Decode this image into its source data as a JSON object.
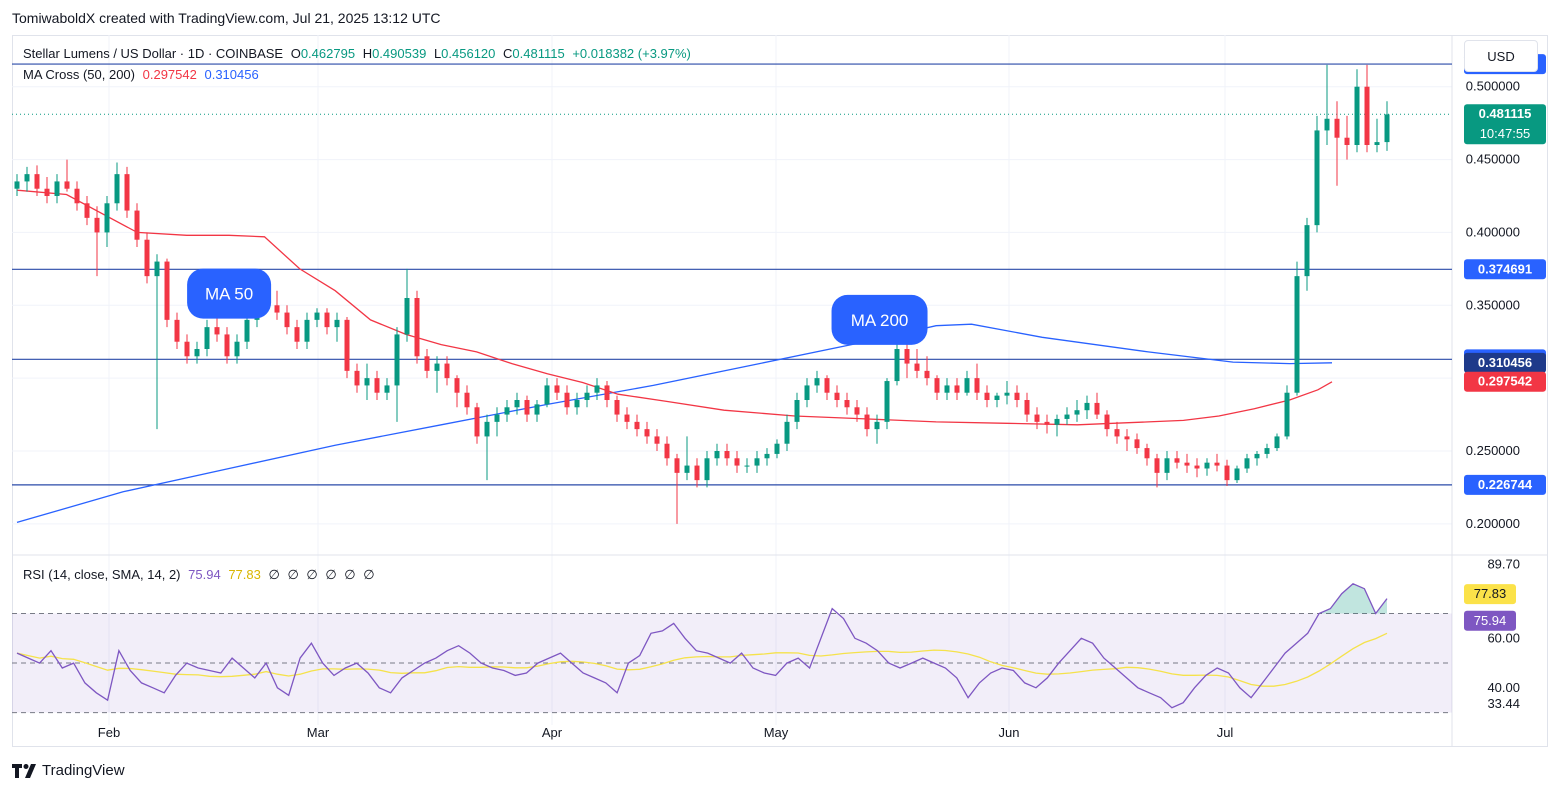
{
  "header": {
    "credit": "TomiwaboldX created with TradingView.com, Jul 21, 2025 13:12 UTC"
  },
  "legend": {
    "symbol": "Stellar Lumens / US Dollar · 1D · COINBASE",
    "o_label": "O",
    "o": "0.462795",
    "h_label": "H",
    "h": "0.490539",
    "l_label": "L",
    "l": "0.456120",
    "c_label": "C",
    "c": "0.481115",
    "change": "+0.018382 (+3.97%)",
    "ma_label": "MA Cross (50, 200)",
    "ma50_value": "0.297542",
    "ma200_value": "0.310456",
    "rsi_label": "RSI (14, close, SMA, 14, 2)",
    "rsi_value": "75.94",
    "rsi_sma_value": "77.83",
    "empty_values": [
      "∅",
      "∅",
      "∅",
      "∅",
      "∅",
      "∅"
    ]
  },
  "toolbar": {
    "currency": "USD"
  },
  "footer": {
    "brand": "TradingView"
  },
  "colors": {
    "up": "#089981",
    "down": "#f23645",
    "ma50": "#f23645",
    "ma200": "#2962ff",
    "rsi": "#7e57c2",
    "rsi_sma": "#f5e24b",
    "level": "#2a4aa8",
    "callout": "#2962ff"
  },
  "chart_data": {
    "type": "candlestick",
    "title": "Stellar Lumens / US Dollar · 1D · COINBASE",
    "x_axis": {
      "ticks": [
        "Feb",
        "Mar",
        "Apr",
        "May",
        "Jun",
        "Jul"
      ]
    },
    "y_axis": {
      "ticks": [
        "0.500000",
        "0.450000",
        "0.400000",
        "0.350000",
        "0.300000",
        "0.250000",
        "0.200000"
      ],
      "ylim": [
        0.18,
        0.53
      ]
    },
    "horizontal_levels": [
      "0.515532",
      "0.374691",
      "0.312911",
      "0.226744"
    ],
    "price_labels": [
      {
        "text": "0.515532",
        "value": 0.515532,
        "color": "#2962ff"
      },
      {
        "text": "0.481115",
        "value": 0.481115,
        "color": "#089981",
        "countdown": "10:47:55"
      },
      {
        "text": "0.374691",
        "value": 0.374691,
        "color": "#2962ff"
      },
      {
        "text": "0.312911",
        "value": 0.312911,
        "color": "#2962ff"
      },
      {
        "text": "0.310456",
        "value": 0.310456,
        "color": "#1e3a8a"
      },
      {
        "text": "0.297542",
        "value": 0.297542,
        "color": "#f23645"
      },
      {
        "text": "0.226744",
        "value": 0.226744,
        "color": "#2962ff"
      }
    ],
    "callouts": [
      {
        "text": "MA 50",
        "date_index": 30,
        "value": 0.358
      },
      {
        "text": "MA 200",
        "date_index": 122,
        "value": 0.34
      }
    ],
    "ma50": [
      0.429,
      0.426,
      0.4,
      0.398,
      0.398,
      0.397,
      0.375,
      0.36,
      0.34,
      0.33,
      0.323,
      0.318,
      0.31,
      0.303,
      0.297,
      0.289,
      0.284,
      0.278,
      0.274,
      0.272,
      0.27,
      0.269,
      0.268,
      0.269,
      0.27,
      0.271,
      0.274,
      0.279,
      0.285,
      0.292,
      0.2975
    ],
    "ma50_x": [
      0,
      7,
      17,
      24,
      30,
      35,
      40,
      45,
      50,
      55,
      60,
      65,
      70,
      75,
      80,
      85,
      92,
      100,
      110,
      120,
      130,
      140,
      150,
      155,
      160,
      165,
      170,
      175,
      180,
      184,
      186
    ],
    "ma200": [
      0.201,
      0.222,
      0.238,
      0.254,
      0.268,
      0.282,
      0.295,
      0.31,
      0.325,
      0.336,
      0.337,
      0.328,
      0.318,
      0.311,
      0.31,
      0.3105
    ],
    "ma200_x": [
      0,
      15,
      30,
      45,
      60,
      75,
      90,
      105,
      120,
      130,
      135,
      145,
      160,
      172,
      180,
      186
    ],
    "candles_y_range": [
      0.195,
      0.518
    ],
    "candles": [
      [
        0.43,
        0.44,
        0.425,
        0.435
      ],
      [
        0.435,
        0.445,
        0.428,
        0.44
      ],
      [
        0.44,
        0.446,
        0.425,
        0.43
      ],
      [
        0.43,
        0.438,
        0.42,
        0.425
      ],
      [
        0.425,
        0.44,
        0.42,
        0.435
      ],
      [
        0.435,
        0.45,
        0.428,
        0.43
      ],
      [
        0.43,
        0.435,
        0.415,
        0.42
      ],
      [
        0.42,
        0.425,
        0.405,
        0.41
      ],
      [
        0.41,
        0.418,
        0.37,
        0.4
      ],
      [
        0.4,
        0.425,
        0.39,
        0.42
      ],
      [
        0.42,
        0.448,
        0.415,
        0.44
      ],
      [
        0.44,
        0.445,
        0.41,
        0.415
      ],
      [
        0.415,
        0.42,
        0.39,
        0.395
      ],
      [
        0.395,
        0.4,
        0.365,
        0.37
      ],
      [
        0.37,
        0.385,
        0.265,
        0.38
      ],
      [
        0.38,
        0.382,
        0.335,
        0.34
      ],
      [
        0.34,
        0.345,
        0.32,
        0.325
      ],
      [
        0.325,
        0.33,
        0.31,
        0.315
      ],
      [
        0.315,
        0.325,
        0.31,
        0.32
      ],
      [
        0.32,
        0.34,
        0.315,
        0.335
      ],
      [
        0.335,
        0.345,
        0.325,
        0.33
      ],
      [
        0.33,
        0.335,
        0.31,
        0.315
      ],
      [
        0.315,
        0.33,
        0.31,
        0.325
      ],
      [
        0.325,
        0.345,
        0.32,
        0.34
      ],
      [
        0.34,
        0.36,
        0.335,
        0.355
      ],
      [
        0.355,
        0.365,
        0.345,
        0.35
      ],
      [
        0.35,
        0.36,
        0.34,
        0.345
      ],
      [
        0.345,
        0.35,
        0.33,
        0.335
      ],
      [
        0.335,
        0.34,
        0.32,
        0.325
      ],
      [
        0.325,
        0.345,
        0.32,
        0.34
      ],
      [
        0.34,
        0.348,
        0.335,
        0.345
      ],
      [
        0.345,
        0.348,
        0.33,
        0.335
      ],
      [
        0.335,
        0.345,
        0.325,
        0.34
      ],
      [
        0.34,
        0.342,
        0.3,
        0.305
      ],
      [
        0.305,
        0.31,
        0.29,
        0.295
      ],
      [
        0.295,
        0.31,
        0.285,
        0.3
      ],
      [
        0.3,
        0.305,
        0.285,
        0.29
      ],
      [
        0.29,
        0.3,
        0.285,
        0.295
      ],
      [
        0.295,
        0.335,
        0.27,
        0.33
      ],
      [
        0.33,
        0.375,
        0.325,
        0.355
      ],
      [
        0.355,
        0.36,
        0.31,
        0.315
      ],
      [
        0.315,
        0.32,
        0.3,
        0.305
      ],
      [
        0.305,
        0.315,
        0.29,
        0.31
      ],
      [
        0.31,
        0.315,
        0.295,
        0.3
      ],
      [
        0.3,
        0.302,
        0.28,
        0.29
      ],
      [
        0.29,
        0.295,
        0.275,
        0.28
      ],
      [
        0.28,
        0.283,
        0.255,
        0.26
      ],
      [
        0.26,
        0.275,
        0.23,
        0.27
      ],
      [
        0.27,
        0.28,
        0.26,
        0.275
      ],
      [
        0.275,
        0.285,
        0.27,
        0.28
      ],
      [
        0.28,
        0.29,
        0.275,
        0.285
      ],
      [
        0.285,
        0.288,
        0.27,
        0.275
      ],
      [
        0.275,
        0.285,
        0.27,
        0.282
      ],
      [
        0.282,
        0.3,
        0.28,
        0.295
      ],
      [
        0.295,
        0.3,
        0.285,
        0.29
      ],
      [
        0.29,
        0.295,
        0.275,
        0.28
      ],
      [
        0.28,
        0.29,
        0.275,
        0.285
      ],
      [
        0.285,
        0.295,
        0.28,
        0.29
      ],
      [
        0.29,
        0.3,
        0.285,
        0.295
      ],
      [
        0.295,
        0.298,
        0.28,
        0.285
      ],
      [
        0.285,
        0.288,
        0.27,
        0.275
      ],
      [
        0.275,
        0.28,
        0.265,
        0.27
      ],
      [
        0.27,
        0.275,
        0.26,
        0.265
      ],
      [
        0.265,
        0.27,
        0.255,
        0.26
      ],
      [
        0.26,
        0.265,
        0.25,
        0.255
      ],
      [
        0.255,
        0.26,
        0.24,
        0.245
      ],
      [
        0.245,
        0.248,
        0.2,
        0.235
      ],
      [
        0.235,
        0.26,
        0.23,
        0.24
      ],
      [
        0.24,
        0.245,
        0.225,
        0.23
      ],
      [
        0.23,
        0.25,
        0.225,
        0.245
      ],
      [
        0.245,
        0.255,
        0.24,
        0.25
      ],
      [
        0.25,
        0.255,
        0.24,
        0.245
      ],
      [
        0.245,
        0.25,
        0.235,
        0.24
      ],
      [
        0.24,
        0.245,
        0.235,
        0.24
      ],
      [
        0.24,
        0.25,
        0.235,
        0.245
      ],
      [
        0.245,
        0.252,
        0.24,
        0.248
      ],
      [
        0.248,
        0.258,
        0.245,
        0.255
      ],
      [
        0.255,
        0.275,
        0.25,
        0.27
      ],
      [
        0.27,
        0.29,
        0.265,
        0.285
      ],
      [
        0.285,
        0.3,
        0.28,
        0.295
      ],
      [
        0.295,
        0.305,
        0.29,
        0.3
      ],
      [
        0.3,
        0.302,
        0.285,
        0.29
      ],
      [
        0.29,
        0.295,
        0.28,
        0.285
      ],
      [
        0.285,
        0.29,
        0.275,
        0.28
      ],
      [
        0.28,
        0.285,
        0.27,
        0.275
      ],
      [
        0.275,
        0.28,
        0.26,
        0.265
      ],
      [
        0.265,
        0.275,
        0.255,
        0.27
      ],
      [
        0.27,
        0.3,
        0.265,
        0.298
      ],
      [
        0.298,
        0.325,
        0.295,
        0.32
      ],
      [
        0.32,
        0.335,
        0.3,
        0.31
      ],
      [
        0.31,
        0.32,
        0.3,
        0.305
      ],
      [
        0.305,
        0.315,
        0.295,
        0.3
      ],
      [
        0.3,
        0.302,
        0.285,
        0.29
      ],
      [
        0.29,
        0.3,
        0.285,
        0.295
      ],
      [
        0.295,
        0.3,
        0.285,
        0.29
      ],
      [
        0.29,
        0.305,
        0.288,
        0.3
      ],
      [
        0.3,
        0.31,
        0.285,
        0.29
      ],
      [
        0.29,
        0.295,
        0.28,
        0.285
      ],
      [
        0.285,
        0.29,
        0.28,
        0.288
      ],
      [
        0.288,
        0.298,
        0.282,
        0.29
      ],
      [
        0.29,
        0.295,
        0.28,
        0.285
      ],
      [
        0.285,
        0.29,
        0.27,
        0.275
      ],
      [
        0.275,
        0.28,
        0.265,
        0.27
      ],
      [
        0.27,
        0.275,
        0.262,
        0.268
      ],
      [
        0.268,
        0.275,
        0.26,
        0.272
      ],
      [
        0.272,
        0.28,
        0.268,
        0.275
      ],
      [
        0.275,
        0.285,
        0.27,
        0.278
      ],
      [
        0.278,
        0.288,
        0.272,
        0.283
      ],
      [
        0.283,
        0.29,
        0.272,
        0.275
      ],
      [
        0.275,
        0.278,
        0.26,
        0.265
      ],
      [
        0.265,
        0.27,
        0.255,
        0.26
      ],
      [
        0.26,
        0.265,
        0.25,
        0.258
      ],
      [
        0.258,
        0.262,
        0.248,
        0.252
      ],
      [
        0.252,
        0.255,
        0.24,
        0.245
      ],
      [
        0.245,
        0.248,
        0.225,
        0.235
      ],
      [
        0.235,
        0.25,
        0.23,
        0.245
      ],
      [
        0.245,
        0.25,
        0.238,
        0.242
      ],
      [
        0.242,
        0.248,
        0.235,
        0.24
      ],
      [
        0.24,
        0.245,
        0.232,
        0.238
      ],
      [
        0.238,
        0.245,
        0.233,
        0.242
      ],
      [
        0.242,
        0.248,
        0.236,
        0.24
      ],
      [
        0.24,
        0.244,
        0.226,
        0.23
      ],
      [
        0.23,
        0.24,
        0.228,
        0.238
      ],
      [
        0.238,
        0.248,
        0.235,
        0.245
      ],
      [
        0.245,
        0.25,
        0.24,
        0.248
      ],
      [
        0.248,
        0.255,
        0.245,
        0.252
      ],
      [
        0.252,
        0.262,
        0.25,
        0.26
      ],
      [
        0.26,
        0.295,
        0.258,
        0.29
      ],
      [
        0.29,
        0.38,
        0.288,
        0.37
      ],
      [
        0.37,
        0.41,
        0.36,
        0.405
      ],
      [
        0.405,
        0.48,
        0.4,
        0.47
      ],
      [
        0.47,
        0.515,
        0.46,
        0.478
      ],
      [
        0.478,
        0.49,
        0.432,
        0.465
      ],
      [
        0.465,
        0.48,
        0.45,
        0.46
      ],
      [
        0.46,
        0.512,
        0.455,
        0.5
      ],
      [
        0.5,
        0.515,
        0.455,
        0.46
      ],
      [
        0.46,
        0.478,
        0.455,
        0.462
      ],
      [
        0.462,
        0.49,
        0.456,
        0.481
      ]
    ],
    "rsi": {
      "value": 75.94,
      "sma": 77.83,
      "levels": [
        70,
        50,
        30
      ],
      "y_ticks": [
        "89.70",
        "60.00",
        "40.00",
        "33.44"
      ],
      "ylim": [
        25,
        92
      ],
      "series": [
        54,
        52,
        50,
        55,
        48,
        50,
        42,
        38,
        35,
        55,
        47,
        42,
        40,
        38,
        45,
        50,
        48,
        47,
        46,
        52,
        48,
        44,
        50,
        40,
        37,
        52,
        58,
        50,
        45,
        48,
        50,
        46,
        40,
        38,
        44,
        47,
        50,
        52,
        55,
        57,
        54,
        50,
        48,
        47,
        45,
        46,
        50,
        52,
        54,
        50,
        46,
        44,
        42,
        38,
        50,
        53,
        62,
        63,
        66,
        60,
        55,
        54,
        52,
        50,
        54,
        48,
        46,
        45,
        50,
        52,
        48,
        60,
        72,
        68,
        60,
        58,
        55,
        50,
        48,
        50,
        52,
        50,
        48,
        44,
        36,
        42,
        46,
        48,
        47,
        42,
        40,
        44,
        50,
        55,
        60,
        58,
        52,
        48,
        44,
        40,
        38,
        36,
        32,
        34,
        40,
        45,
        48,
        46,
        40,
        36,
        42,
        48,
        54,
        58,
        62,
        70,
        72,
        78,
        82,
        80,
        70,
        76
      ]
    }
  }
}
